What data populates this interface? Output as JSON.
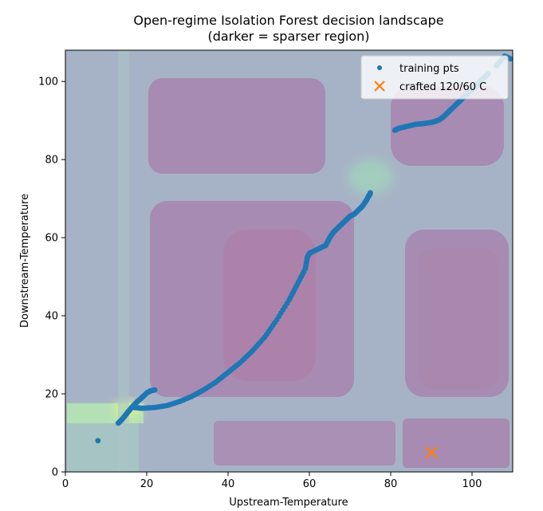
{
  "chart_data": {
    "type": "scatter",
    "title": "Open-regime Isolation Forest decision landscape",
    "subtitle": "(darker = sparser region)",
    "xlabel": "Upstream-Temperature",
    "ylabel": "Downstream-Temperature",
    "xlim": [
      0,
      110
    ],
    "ylim": [
      0,
      108
    ],
    "x_ticks": [
      0,
      20,
      40,
      60,
      80,
      100
    ],
    "y_ticks": [
      0,
      20,
      40,
      60,
      80,
      100
    ],
    "grid": false,
    "legend_position": "top-right",
    "background": "decision-function contour (viridis, semi-transparent)",
    "colors": {
      "training": "#1f77b4",
      "crafted": "#ff7f0e",
      "dense": "#9fe0a8",
      "mid": "#a3b9c8",
      "sparse": "#a58bb0",
      "sparsest": "#ad85aa"
    },
    "series": [
      {
        "name": "training pts",
        "marker": "dot",
        "x": [
          8,
          13,
          13.8,
          14.6,
          15.5,
          16.3,
          17.2,
          18,
          19,
          20,
          21,
          22,
          17,
          19,
          22,
          25,
          28,
          31,
          34,
          37,
          40,
          43,
          46,
          49,
          52,
          55,
          57,
          59,
          59.5,
          60,
          62,
          64,
          65,
          66,
          67,
          68,
          69,
          70,
          71,
          72,
          73,
          74,
          74.5,
          74.8,
          75,
          81,
          82,
          84,
          86,
          88,
          90,
          91,
          92,
          93,
          94,
          95,
          96,
          97,
          98,
          99,
          100,
          101,
          102,
          104,
          106,
          108,
          109.5
        ],
        "y": [
          8,
          12.5,
          13.3,
          14.3,
          15.5,
          16.5,
          17.5,
          18.3,
          19.2,
          20.2,
          20.8,
          21,
          16.5,
          16.3,
          16.5,
          17,
          18,
          19.3,
          21,
          23,
          25.5,
          28,
          31,
          34.5,
          39,
          44,
          48,
          52,
          55,
          56,
          57,
          58,
          60,
          61.5,
          62.5,
          63.5,
          64.5,
          65.5,
          66,
          67,
          68,
          69.5,
          70.5,
          71,
          71.5,
          87.5,
          88,
          88.5,
          89,
          89.2,
          89.5,
          89.8,
          90.2,
          91,
          92,
          93,
          94,
          95,
          96,
          97,
          98,
          99,
          100,
          102,
          104,
          106.5,
          105.8
        ]
      },
      {
        "name": "crafted 120/60 C",
        "marker": "x",
        "x": [
          90
        ],
        "y": [
          5
        ]
      }
    ]
  }
}
